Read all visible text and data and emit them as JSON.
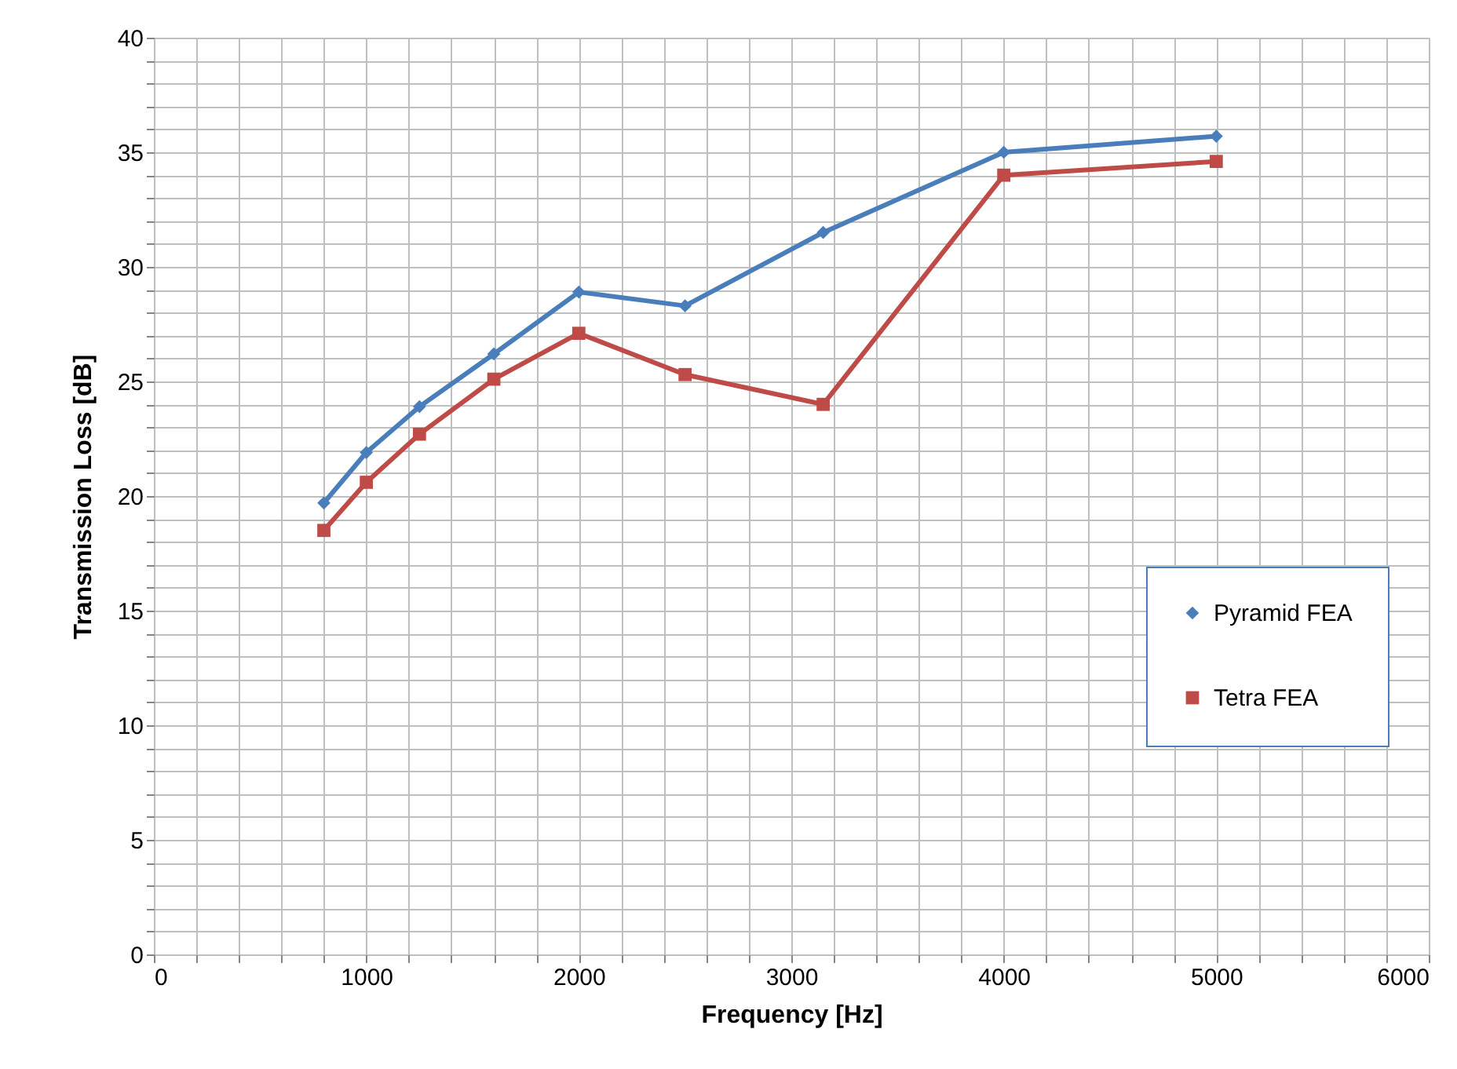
{
  "chart_data": {
    "type": "line",
    "xlabel": "Frequency [Hz]",
    "ylabel": "Transmission  Loss [dB]",
    "x": [
      800,
      1000,
      1250,
      1600,
      2000,
      2500,
      3150,
      4000,
      5000
    ],
    "series": [
      {
        "name": "Pyramid FEA",
        "color": "#4a7ebb",
        "marker": "diamond",
        "values": [
          19.7,
          21.9,
          23.9,
          26.2,
          28.9,
          28.3,
          31.5,
          35.0,
          35.7
        ]
      },
      {
        "name": "Tetra FEA",
        "color": "#be4b48",
        "marker": "square",
        "values": [
          18.5,
          20.6,
          22.7,
          25.1,
          27.1,
          25.3,
          24.0,
          34.0,
          34.6
        ]
      }
    ],
    "xlim": [
      0,
      6000
    ],
    "ylim": [
      0,
      40
    ],
    "xticks": [
      0,
      {
        "value": 200,
        "label": null
      },
      {
        "value": 400,
        "label": null
      },
      {
        "value": 600,
        "label": null
      },
      {
        "value": 800,
        "label": null
      },
      1000,
      {
        "value": 1200,
        "label": null
      },
      {
        "value": 1400,
        "label": null
      },
      {
        "value": 1600,
        "label": null
      },
      {
        "value": 1800,
        "label": null
      },
      2000,
      {
        "value": 2200,
        "label": null
      },
      {
        "value": 2400,
        "label": null
      },
      {
        "value": 2600,
        "label": null
      },
      {
        "value": 2800,
        "label": null
      },
      3000,
      {
        "value": 3200,
        "label": null
      },
      {
        "value": 3400,
        "label": null
      },
      {
        "value": 3600,
        "label": null
      },
      {
        "value": 3800,
        "label": null
      },
      4000,
      {
        "value": 4200,
        "label": null
      },
      {
        "value": 4400,
        "label": null
      },
      {
        "value": 4600,
        "label": null
      },
      {
        "value": 4800,
        "label": null
      },
      5000,
      {
        "value": 5200,
        "label": null
      },
      {
        "value": 5400,
        "label": null
      },
      {
        "value": 5600,
        "label": null
      },
      {
        "value": 5800,
        "label": null
      },
      6000
    ],
    "yticks": [
      0,
      {
        "value": 1,
        "label": null
      },
      {
        "value": 2,
        "label": null
      },
      {
        "value": 3,
        "label": null
      },
      {
        "value": 4,
        "label": null
      },
      5,
      {
        "value": 6,
        "label": null
      },
      {
        "value": 7,
        "label": null
      },
      {
        "value": 8,
        "label": null
      },
      {
        "value": 9,
        "label": null
      },
      10,
      {
        "value": 11,
        "label": null
      },
      {
        "value": 12,
        "label": null
      },
      {
        "value": 13,
        "label": null
      },
      {
        "value": 14,
        "label": null
      },
      15,
      {
        "value": 16,
        "label": null
      },
      {
        "value": 17,
        "label": null
      },
      {
        "value": 18,
        "label": null
      },
      {
        "value": 19,
        "label": null
      },
      20,
      {
        "value": 21,
        "label": null
      },
      {
        "value": 22,
        "label": null
      },
      {
        "value": 23,
        "label": null
      },
      {
        "value": 24,
        "label": null
      },
      25,
      {
        "value": 26,
        "label": null
      },
      {
        "value": 27,
        "label": null
      },
      {
        "value": 28,
        "label": null
      },
      {
        "value": 29,
        "label": null
      },
      30,
      {
        "value": 31,
        "label": null
      },
      {
        "value": 32,
        "label": null
      },
      {
        "value": 33,
        "label": null
      },
      {
        "value": 34,
        "label": null
      },
      35,
      {
        "value": 36,
        "label": null
      },
      {
        "value": 37,
        "label": null
      },
      {
        "value": 38,
        "label": null
      },
      {
        "value": 39,
        "label": null
      },
      40
    ],
    "grid": true,
    "legend": "right",
    "line_style": "solid"
  }
}
